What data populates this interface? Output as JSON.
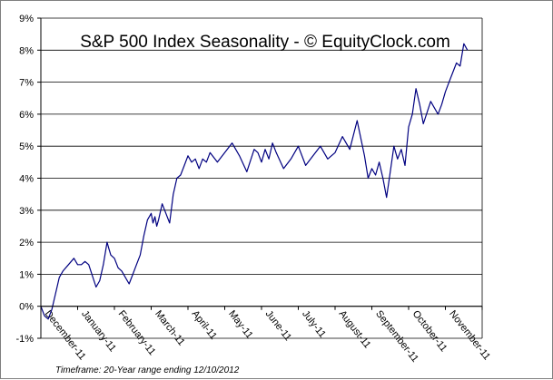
{
  "chart_data": {
    "type": "line",
    "title": "S&P 500 Index Seasonality - © EquityClock.com",
    "note": "Timeframe: 20-Year range ending 12/10/2012",
    "xlabel": "",
    "ylabel": "",
    "ylim": [
      -1,
      9
    ],
    "y_ticks": [
      "-1%",
      "0%",
      "1%",
      "2%",
      "3%",
      "4%",
      "5%",
      "6%",
      "7%",
      "8%",
      "9%"
    ],
    "categories": [
      "December-11",
      "January-11",
      "February-11",
      "March-11",
      "April-11",
      "May-11",
      "June-11",
      "July-11",
      "August-11",
      "September-11",
      "October-11",
      "November-11"
    ],
    "grid": true,
    "line_color": "#000080",
    "series": [
      {
        "name": "S&P 500 Seasonality",
        "x": [
          0,
          0.1,
          0.2,
          0.3,
          0.4,
          0.5,
          0.6,
          0.75,
          0.9,
          1.0,
          1.1,
          1.2,
          1.3,
          1.5,
          1.6,
          1.7,
          1.8,
          1.85,
          1.9,
          2.0,
          2.1,
          2.2,
          2.3,
          2.4,
          2.5,
          2.6,
          2.7,
          2.8,
          2.9,
          3.0,
          3.05,
          3.1,
          3.15,
          3.2,
          3.3,
          3.4,
          3.5,
          3.6,
          3.7,
          3.8,
          3.9,
          4.0,
          4.1,
          4.2,
          4.3,
          4.4,
          4.5,
          4.6,
          4.8,
          5.0,
          5.2,
          5.4,
          5.6,
          5.8,
          5.9,
          6.0,
          6.1,
          6.2,
          6.3,
          6.4,
          6.6,
          6.8,
          7.0,
          7.2,
          7.4,
          7.6,
          7.8,
          8.0,
          8.2,
          8.4,
          8.6,
          8.8,
          8.9,
          9.0,
          9.1,
          9.2,
          9.3,
          9.4,
          9.5,
          9.6,
          9.7,
          9.8,
          9.9,
          10.0,
          10.1,
          10.2,
          10.3,
          10.4,
          10.6,
          10.8,
          10.9,
          11.0,
          11.1,
          11.2,
          11.3,
          11.4,
          11.5,
          11.6
        ],
        "values": [
          0.0,
          -0.3,
          -0.4,
          -0.1,
          0.4,
          0.9,
          1.1,
          1.3,
          1.5,
          1.3,
          1.3,
          1.4,
          1.3,
          0.6,
          0.8,
          1.3,
          2.0,
          1.8,
          1.6,
          1.5,
          1.2,
          1.1,
          0.9,
          0.7,
          1.0,
          1.3,
          1.6,
          2.2,
          2.7,
          2.9,
          2.6,
          2.8,
          2.5,
          2.7,
          3.2,
          2.9,
          2.6,
          3.5,
          4.0,
          4.1,
          4.4,
          4.7,
          4.5,
          4.6,
          4.3,
          4.6,
          4.5,
          4.8,
          4.5,
          4.8,
          5.1,
          4.7,
          4.2,
          4.9,
          4.8,
          4.5,
          4.9,
          4.6,
          5.1,
          4.8,
          4.3,
          4.6,
          5.0,
          4.4,
          4.7,
          5.0,
          4.6,
          4.8,
          5.3,
          4.9,
          5.8,
          4.7,
          4.0,
          4.3,
          4.1,
          4.5,
          4.0,
          3.4,
          4.2,
          5.0,
          4.6,
          4.9,
          4.4,
          5.6,
          6.0,
          6.8,
          6.3,
          5.7,
          6.4,
          6.0,
          6.3,
          6.7,
          7.0,
          7.3,
          7.6,
          7.5,
          8.2,
          8.0
        ]
      }
    ]
  }
}
